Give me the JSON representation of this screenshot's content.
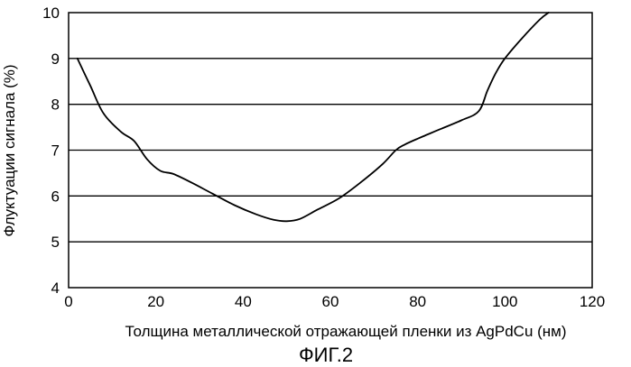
{
  "chart_data": {
    "type": "line",
    "title": "",
    "xlabel": "Толщина металлической отражающей пленки из AgPdCu (нм)",
    "ylabel": "Флуктуации сигнала (%)",
    "caption": "ФИГ.2",
    "xlim": [
      0,
      120
    ],
    "ylim": [
      4,
      10
    ],
    "x_ticks": [
      0,
      20,
      40,
      60,
      80,
      100,
      120
    ],
    "y_ticks": [
      4,
      5,
      6,
      7,
      8,
      9,
      10
    ],
    "x_tick_labels": [
      "0",
      "20",
      "40",
      "60",
      "80",
      "100",
      "120"
    ],
    "y_tick_labels": [
      "4",
      "5",
      "6",
      "7",
      "8",
      "9",
      "10"
    ],
    "grid": {
      "horizontal": true,
      "vertical": false
    },
    "series": [
      {
        "x": [
          2,
          5,
          8,
          12,
          15,
          18,
          21,
          24,
          28,
          33,
          38,
          43,
          47,
          50,
          53,
          57,
          62,
          67,
          72,
          75,
          77,
          80,
          85,
          90,
          94,
          96,
          98,
          100,
          104,
          108,
          110
        ],
        "values": [
          9.0,
          8.4,
          7.8,
          7.4,
          7.2,
          6.8,
          6.55,
          6.48,
          6.3,
          6.05,
          5.8,
          5.6,
          5.48,
          5.45,
          5.5,
          5.7,
          5.95,
          6.3,
          6.7,
          7.0,
          7.12,
          7.25,
          7.45,
          7.65,
          7.85,
          8.3,
          8.7,
          9.0,
          9.45,
          9.85,
          10.05
        ]
      }
    ]
  }
}
